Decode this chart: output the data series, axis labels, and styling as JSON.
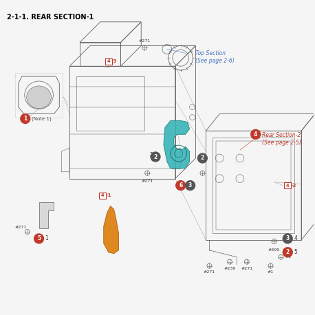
{
  "title": "2-1-1. REAR SECTION-1",
  "title_color": "#000000",
  "background_color": "#f5f5f5",
  "top_section_label": "Top Section\n(See page 2-6)",
  "top_section_color": "#4472c4",
  "rear_section2_label": "Rear Section-2\n(See page 2-5)",
  "rear_section2_color": "#c0392b",
  "teal_part_color": "#3ab5b8",
  "orange_part_color": "#e08820",
  "line_color": "#606060",
  "guide_line_color": "#aaaaaa",
  "fig_width": 4.58,
  "fig_height": 4.58,
  "dpi": 100
}
